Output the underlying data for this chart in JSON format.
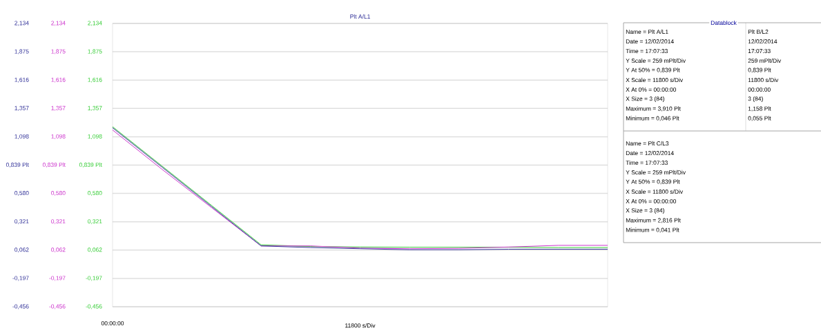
{
  "chart_data": [
    {
      "type": "line",
      "title": "Plt A/L1",
      "xlabel": "11800 s/Div",
      "categories": [
        "00:00:00",
        null,
        null,
        null,
        null,
        null,
        null,
        null,
        null,
        null,
        null
      ],
      "ylim": [
        -0.456,
        2.134
      ],
      "yticks": [
        {
          "value": -0.456,
          "label": "-0,456"
        },
        {
          "value": -0.197,
          "label": "-0,197"
        },
        {
          "value": 0.062,
          "label": "0,062"
        },
        {
          "value": 0.321,
          "label": "0,321"
        },
        {
          "value": 0.58,
          "label": "0,580"
        },
        {
          "value": 0.839,
          "label": "0,839 Plt"
        },
        {
          "value": 1.098,
          "label": "1,098"
        },
        {
          "value": 1.357,
          "label": "1,357"
        },
        {
          "value": 1.616,
          "label": "1,616"
        },
        {
          "value": 1.875,
          "label": "1,875"
        },
        {
          "value": 2.134,
          "label": "2,134"
        }
      ],
      "y2lim": [
        -0.456,
        2.134
      ],
      "y2ticks": [
        {
          "value": -0.456,
          "label": "-0,456"
        },
        {
          "value": -0.197,
          "label": "-0,197"
        },
        {
          "value": 0.062,
          "label": "0,062"
        },
        {
          "value": 0.321,
          "label": "0,321"
        },
        {
          "value": 0.58,
          "label": "0,580"
        },
        {
          "value": 0.839,
          "label": "0,839 Plt"
        },
        {
          "value": 1.098,
          "label": "1,098"
        },
        {
          "value": 1.357,
          "label": "1,357"
        },
        {
          "value": 1.616,
          "label": "1,616"
        },
        {
          "value": 1.875,
          "label": "1,875"
        },
        {
          "value": 2.134,
          "label": "2,134"
        }
      ],
      "y3lim": [
        -0.456,
        2.134
      ],
      "y3ticks": [
        {
          "value": -0.456,
          "label": "-0,456"
        },
        {
          "value": -0.197,
          "label": "-0,197"
        },
        {
          "value": 0.062,
          "label": "0,062"
        },
        {
          "value": 0.321,
          "label": "0,321"
        },
        {
          "value": 0.58,
          "label": "0,580"
        },
        {
          "value": 0.839,
          "label": "0,839 Plt"
        },
        {
          "value": 1.098,
          "label": "1,098"
        },
        {
          "value": 1.357,
          "label": "1,357"
        },
        {
          "value": 1.616,
          "label": "1,616"
        },
        {
          "value": 1.875,
          "label": "1,875"
        },
        {
          "value": 2.134,
          "label": "2,134"
        }
      ],
      "grid": "y",
      "marker": "none",
      "line_style": "solid",
      "series": [
        {
          "color": "#33cc33",
          "axis": "y3",
          "values": [
            1.19,
            0.83,
            0.47,
            0.11,
            0.095,
            0.09,
            0.088,
            0.088,
            0.088,
            0.085,
            0.085
          ]
        },
        {
          "color": "#cc33cc",
          "axis": "y2",
          "values": [
            1.16,
            0.8,
            0.45,
            0.1,
            0.1,
            0.08,
            0.075,
            0.078,
            0.09,
            0.105,
            0.105
          ]
        },
        {
          "color": "#333399",
          "axis": "y",
          "values": [
            1.18,
            0.82,
            0.46,
            0.1,
            0.085,
            0.075,
            0.065,
            0.065,
            0.07,
            0.07,
            0.07
          ]
        }
      ]
    },
    {
      "type": "other",
      "title": "Datablock",
      "annotations": [
        "Name = Plt A/L1",
        "Date = 12/02/2014",
        "Time = 17:07:33",
        "Y Scale = 259 mPlt/Div",
        "Y At 50% = 0,839 Plt",
        "X Scale = 11800 s/Div",
        "X At 0% = 00:00:00",
        "X Size = 3 (84)",
        "Maximum = 3,910 Plt",
        "Minimum = 0,046 Plt",
        "Plt B/L2",
        "12/02/2014",
        "17:07:33",
        "259 mPlt/Div",
        "0,839 Plt",
        "11800 s/Div",
        "00:00:00",
        "3 (84)",
        "1,158 Plt",
        "0,055 Plt",
        "Name = Plt C/L3",
        "Date = 12/02/2014",
        "Time = 17:07:33",
        "Y Scale = 259 mPlt/Div",
        "Y At 50% = 0,839 Plt",
        "X Scale = 11800 s/Div",
        "X At 0% = 00:00:00",
        "X Size = 3 (84)",
        "Maximum = 2,816 Plt",
        "Minimum = 0,041 Plt"
      ]
    }
  ]
}
